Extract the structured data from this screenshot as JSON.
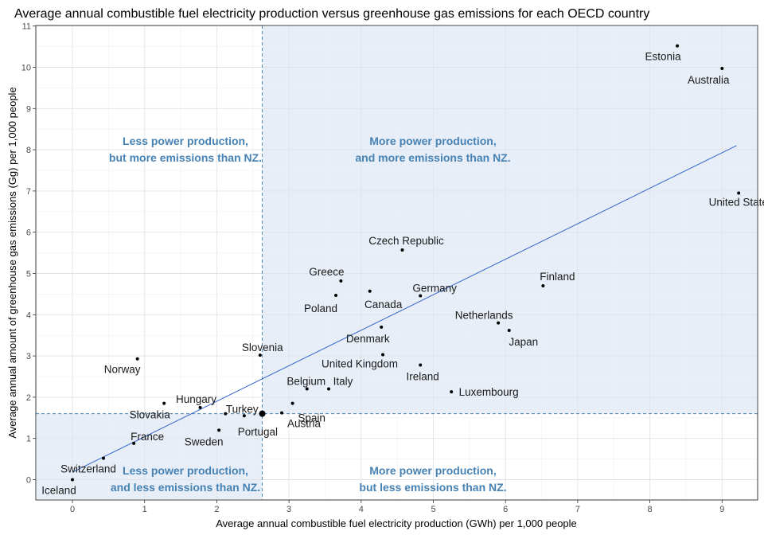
{
  "chart_data": {
    "type": "scatter",
    "title": "Average annual combustible fuel electricity production versus greenhouse gas emissions for each OECD country",
    "xlabel": "Average annual combustible fuel electricity production (GWh) per 1,000 people",
    "ylabel": "Average annual amount of greenhouse gas emissions (Gg) per 1,000 people",
    "xlim": [
      -0.5,
      9.5
    ],
    "ylim": [
      -0.5,
      11
    ],
    "x_ticks": [
      "0",
      "1",
      "2",
      "3",
      "4",
      "5",
      "6",
      "7",
      "8",
      "9"
    ],
    "y_ticks": [
      "0",
      "1",
      "2",
      "3",
      "4",
      "5",
      "6",
      "7",
      "8",
      "9",
      "10",
      "11"
    ],
    "grid": true,
    "reference": {
      "x": 2.63,
      "y": 1.6
    },
    "trend_line": {
      "x": [
        0,
        9.2
      ],
      "y": [
        0.18,
        8.1
      ],
      "color": "#3366cc"
    },
    "colors": {
      "quadrant_fill": "#e8eef7",
      "quadrant_text": "#4682b4",
      "points": "#000000"
    },
    "points": [
      {
        "label": "Estonia",
        "x": 8.38,
        "y": 10.52
      },
      {
        "label": "Australia",
        "x": 9.0,
        "y": 9.97
      },
      {
        "label": "United States",
        "x": 9.23,
        "y": 6.95
      },
      {
        "label": "Czech Republic",
        "x": 4.57,
        "y": 5.57
      },
      {
        "label": "Finland",
        "x": 6.52,
        "y": 4.7
      },
      {
        "label": "Greece",
        "x": 3.72,
        "y": 4.82
      },
      {
        "label": "Canada",
        "x": 4.12,
        "y": 4.57
      },
      {
        "label": "Poland",
        "x": 3.65,
        "y": 4.47
      },
      {
        "label": "Germany",
        "x": 4.82,
        "y": 4.46
      },
      {
        "label": "Netherlands",
        "x": 5.9,
        "y": 3.8
      },
      {
        "label": "Japan",
        "x": 6.05,
        "y": 3.62
      },
      {
        "label": "Denmark",
        "x": 4.28,
        "y": 3.7
      },
      {
        "label": "Slovenia",
        "x": 2.6,
        "y": 3.02
      },
      {
        "label": "United Kingdom",
        "x": 4.3,
        "y": 3.03
      },
      {
        "label": "Norway",
        "x": 0.9,
        "y": 2.93
      },
      {
        "label": "Ireland",
        "x": 4.82,
        "y": 2.78
      },
      {
        "label": "Italy",
        "x": 3.55,
        "y": 2.2
      },
      {
        "label": "Luxembourg",
        "x": 5.25,
        "y": 2.13
      },
      {
        "label": "Belgium",
        "x": 3.25,
        "y": 2.2
      },
      {
        "label": "Spain",
        "x": 3.05,
        "y": 1.85
      },
      {
        "label": "Hungary",
        "x": 1.77,
        "y": 1.75
      },
      {
        "label": "Slovakia",
        "x": 1.27,
        "y": 1.85
      },
      {
        "label": "Turkey",
        "x": 2.12,
        "y": 1.6
      },
      {
        "label": "Portugal",
        "x": 2.38,
        "y": 1.55
      },
      {
        "label": "Austria",
        "x": 2.9,
        "y": 1.62
      },
      {
        "label": "Sweden",
        "x": 2.03,
        "y": 1.2
      },
      {
        "label": "France",
        "x": 0.85,
        "y": 0.88
      },
      {
        "label": "Switzerland",
        "x": 0.43,
        "y": 0.52
      },
      {
        "label": "Iceland",
        "x": 0.0,
        "y": 0.0
      }
    ],
    "quadrant_labels": {
      "top_left": [
        "Less power production,",
        "but more emissions than NZ."
      ],
      "top_right": [
        "More power production,",
        "and more emissions than NZ."
      ],
      "bottom_left": [
        "Less power production,",
        "and less emissions than NZ."
      ],
      "bottom_right": [
        "More power production,",
        "but less emissions than NZ."
      ]
    }
  }
}
